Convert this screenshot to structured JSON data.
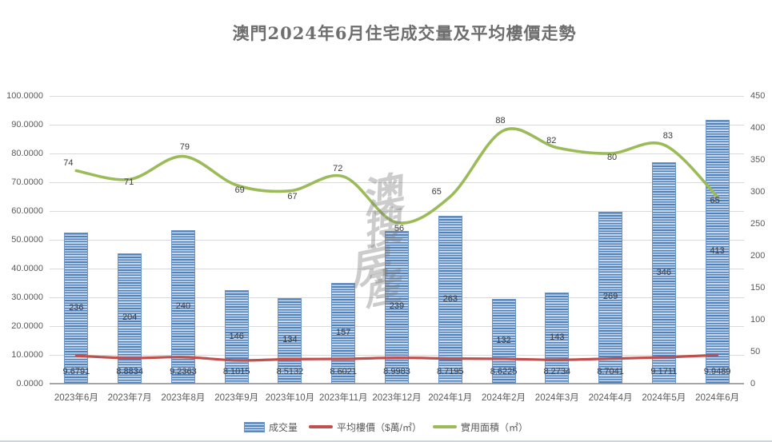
{
  "title": "澳門2024年6月住宅成交量及平均樓價走勢",
  "watermark": "澳搜房産",
  "legend": [
    {
      "label": "成交量",
      "type": "bar",
      "color": "#4F81BD"
    },
    {
      "label": "平均樓價（$萬/㎡）",
      "type": "line",
      "color": "#C0504D"
    },
    {
      "label": "實用面積（㎡）",
      "type": "line",
      "color": "#9BBB59"
    }
  ],
  "chart_data": {
    "type": "combo-bar-line",
    "title": "澳門2024年6月住宅成交量及平均樓價走勢",
    "categories": [
      "2023年6月",
      "2023年7月",
      "2023年8月",
      "2023年9月",
      "2023年10月",
      "2023年11月",
      "2023年12月",
      "2024年1月",
      "2024年2月",
      "2024年3月",
      "2024年4月",
      "2024年5月",
      "2024年6月"
    ],
    "series": [
      {
        "name": "成交量",
        "type": "bar",
        "axis": "right",
        "color": "#4F81BD",
        "values": [
          236,
          204,
          240,
          146,
          134,
          157,
          239,
          263,
          132,
          143,
          269,
          346,
          413
        ]
      },
      {
        "name": "平均樓價（$萬/㎡）",
        "type": "line",
        "axis": "left",
        "color": "#C0504D",
        "values": [
          9.6791,
          8.8834,
          9.2363,
          8.1015,
          8.5132,
          8.6021,
          8.9983,
          8.7195,
          8.6225,
          8.2734,
          8.7041,
          9.1711,
          9.9489
        ]
      },
      {
        "name": "實用面積（㎡）",
        "type": "line",
        "axis": "left",
        "color": "#9BBB59",
        "values": [
          74,
          71,
          79,
          69,
          67,
          72,
          56,
          65,
          88,
          82,
          80,
          83,
          65
        ]
      }
    ],
    "left_axis": {
      "min": 0,
      "max": 100,
      "step": 10,
      "decimals": 4
    },
    "right_axis": {
      "min": 0,
      "max": 450,
      "step": 50,
      "decimals": 0
    },
    "grid": true,
    "legend_position": "bottom",
    "gridline_color": "#D9D9D9"
  }
}
